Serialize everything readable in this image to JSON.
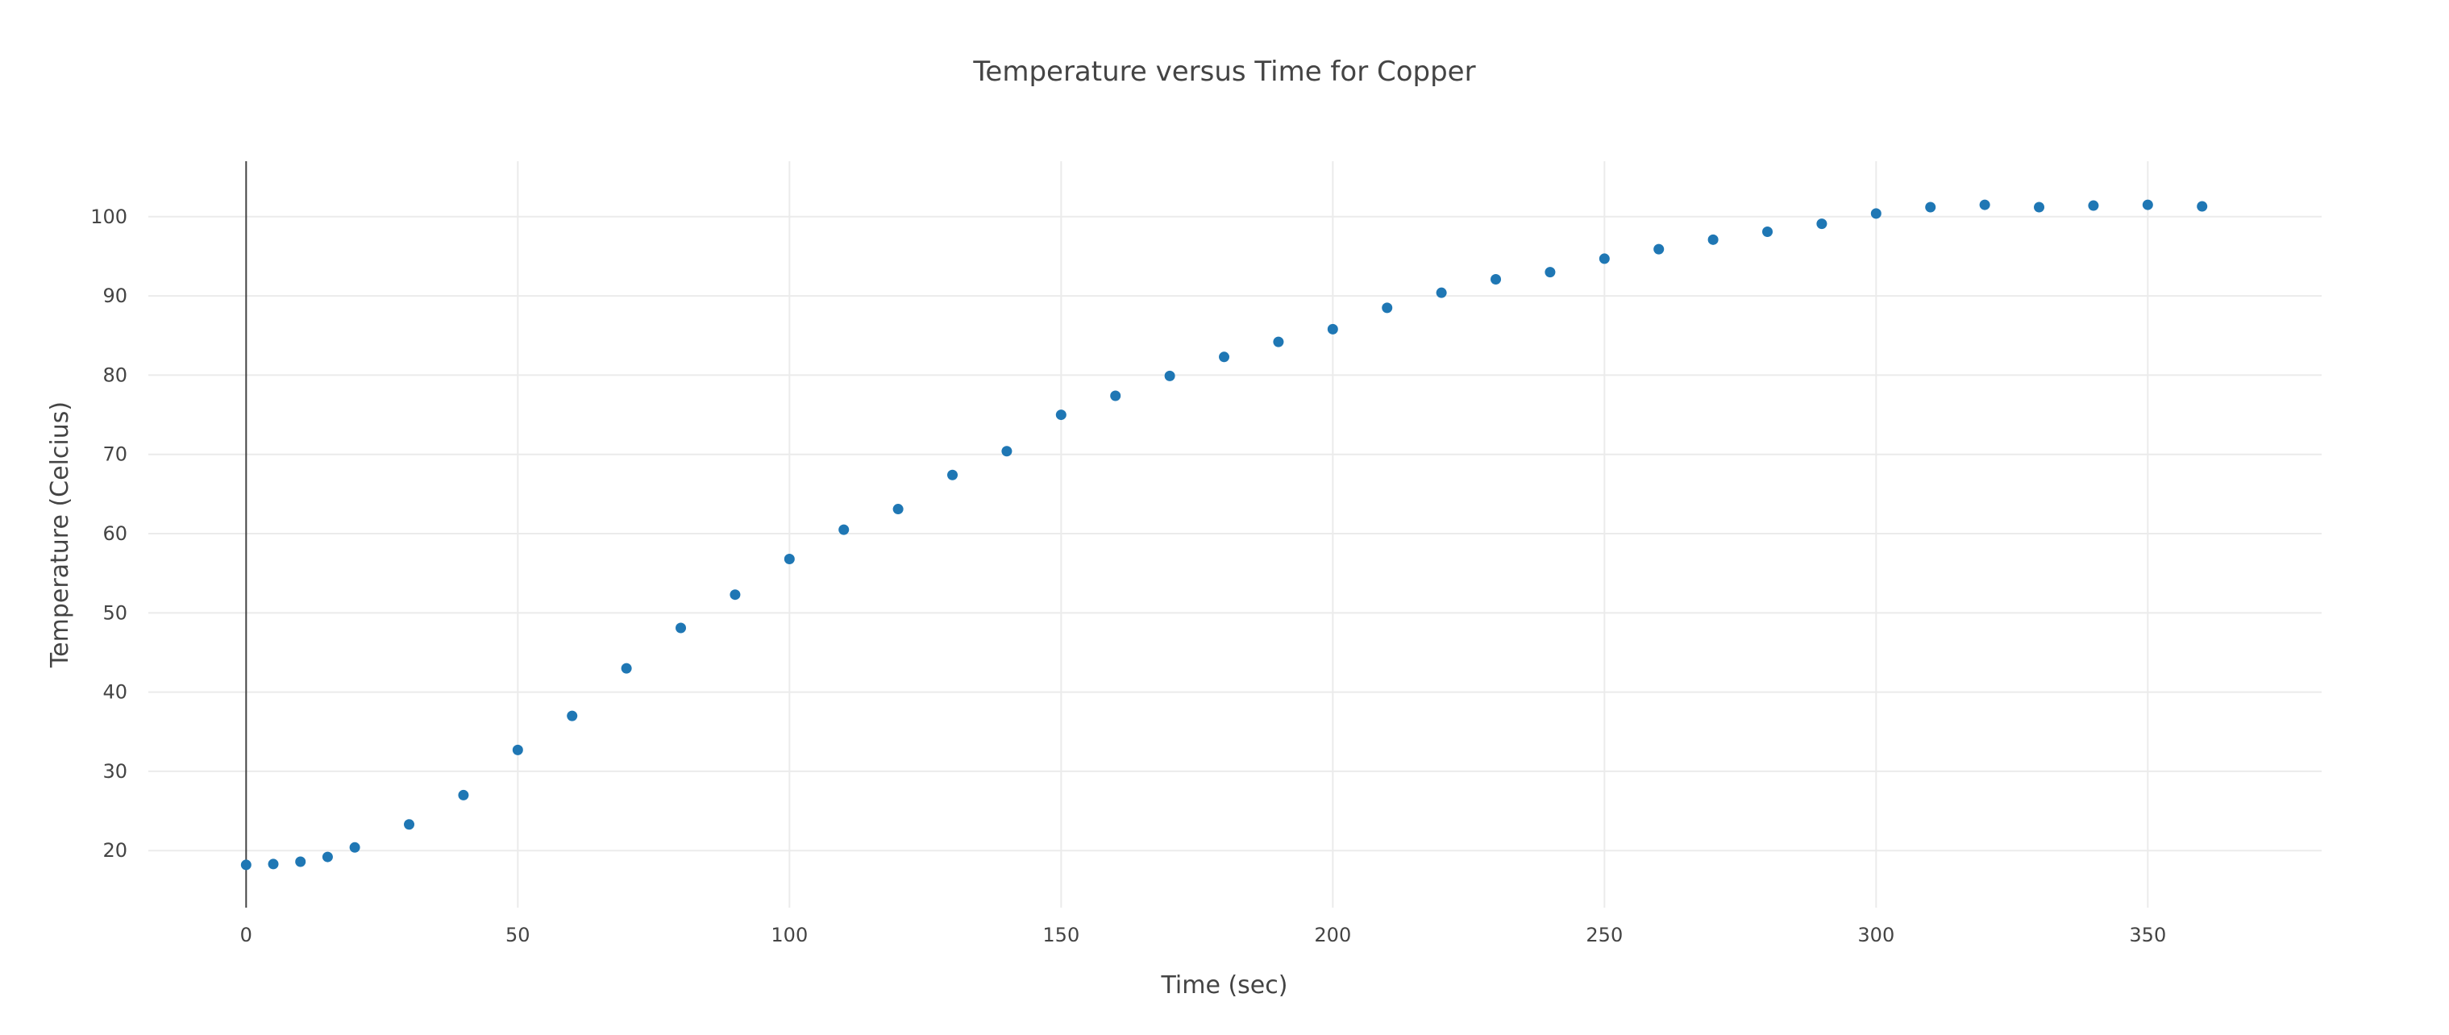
{
  "chart_data": {
    "type": "scatter",
    "title": "Temperature versus Time for Copper",
    "xlabel": "Time (sec)",
    "ylabel": "Temperature (Celcius)",
    "xlim": [
      -18,
      382
    ],
    "ylim": [
      12.8,
      107
    ],
    "xticks": [
      0,
      50,
      100,
      150,
      200,
      250,
      300,
      350
    ],
    "yticks": [
      20,
      30,
      40,
      50,
      60,
      70,
      80,
      90,
      100
    ],
    "grid": true,
    "legend": false,
    "marker_color": "#1f77b4",
    "series": [
      {
        "x": [
          0,
          5,
          10,
          15,
          20,
          30,
          40,
          50,
          60,
          70,
          80,
          90,
          100,
          110,
          120,
          130,
          140,
          150,
          160,
          170,
          180,
          190,
          200,
          210,
          220,
          230,
          240,
          250,
          260,
          270,
          280,
          290,
          300,
          310,
          320,
          330,
          340,
          350,
          360
        ],
        "y": [
          18.2,
          18.3,
          18.6,
          19.2,
          20.4,
          23.3,
          27.0,
          32.7,
          37.0,
          43.0,
          48.1,
          52.3,
          56.8,
          60.5,
          63.1,
          67.4,
          70.4,
          75.0,
          77.4,
          79.9,
          82.3,
          84.2,
          85.8,
          88.5,
          90.4,
          92.1,
          93.0,
          94.7,
          95.9,
          97.1,
          98.1,
          99.1,
          100.4,
          101.2,
          101.5,
          101.2,
          101.4,
          101.5,
          101.3
        ]
      }
    ]
  }
}
